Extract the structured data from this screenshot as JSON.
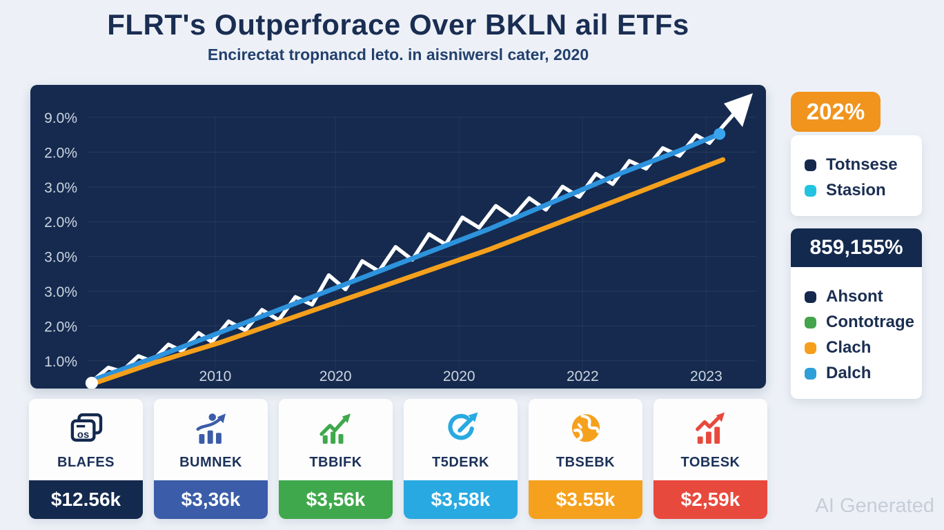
{
  "header": {
    "title": "FLRT's Outperforace Over BKLN ail ETFs",
    "subtitle": "Encirectat tropnancd leto. in aisniwersl cater, 2020"
  },
  "watermark": "AI Generated",
  "badges": {
    "top": {
      "value": "202%",
      "color": "#f0941e"
    },
    "big": {
      "value": "859,155%",
      "color": "#14294e"
    }
  },
  "legend1": {
    "items": [
      {
        "label": "Totnsese",
        "color": "#16294d"
      },
      {
        "label": "Stasion",
        "color": "#22c3e0"
      }
    ]
  },
  "legend2": {
    "items": [
      {
        "label": "Ahsont",
        "color": "#16294d"
      },
      {
        "label": "Contotrage",
        "color": "#43a44b"
      },
      {
        "label": "Clach",
        "color": "#f59f1d"
      },
      {
        "label": "Dalch",
        "color": "#2e9fd8"
      }
    ]
  },
  "chart_data": {
    "type": "line",
    "title": "",
    "background": "#152a4e",
    "grid": true,
    "y_tick_labels": [
      "9.0%",
      "2.0%",
      "3.0%",
      "2.0%",
      "3.0%",
      "3.0%",
      "2.0%",
      "1.0%"
    ],
    "x_ticks": [
      {
        "label": "2010",
        "pos": 0.19
      },
      {
        "label": "2020",
        "pos": 0.37
      },
      {
        "label": "2020",
        "pos": 0.555
      },
      {
        "label": "2022",
        "pos": 0.74
      },
      {
        "label": "2023",
        "pos": 0.925
      }
    ],
    "series": [
      {
        "name": "FLRT",
        "color": "#ffffff",
        "width": 5.5,
        "points": [
          [
            0.005,
            0.005
          ],
          [
            0.03,
            0.06
          ],
          [
            0.05,
            0.045
          ],
          [
            0.075,
            0.105
          ],
          [
            0.095,
            0.085
          ],
          [
            0.12,
            0.15
          ],
          [
            0.14,
            0.125
          ],
          [
            0.165,
            0.195
          ],
          [
            0.185,
            0.16
          ],
          [
            0.21,
            0.24
          ],
          [
            0.235,
            0.205
          ],
          [
            0.26,
            0.285
          ],
          [
            0.285,
            0.245
          ],
          [
            0.31,
            0.335
          ],
          [
            0.335,
            0.305
          ],
          [
            0.36,
            0.42
          ],
          [
            0.385,
            0.365
          ],
          [
            0.41,
            0.475
          ],
          [
            0.435,
            0.435
          ],
          [
            0.46,
            0.53
          ],
          [
            0.485,
            0.48
          ],
          [
            0.51,
            0.58
          ],
          [
            0.535,
            0.54
          ],
          [
            0.56,
            0.645
          ],
          [
            0.585,
            0.605
          ],
          [
            0.61,
            0.69
          ],
          [
            0.635,
            0.645
          ],
          [
            0.66,
            0.72
          ],
          [
            0.685,
            0.675
          ],
          [
            0.71,
            0.765
          ],
          [
            0.735,
            0.725
          ],
          [
            0.76,
            0.815
          ],
          [
            0.785,
            0.775
          ],
          [
            0.81,
            0.865
          ],
          [
            0.835,
            0.835
          ],
          [
            0.86,
            0.915
          ],
          [
            0.885,
            0.885
          ],
          [
            0.91,
            0.965
          ],
          [
            0.93,
            0.935
          ],
          [
            0.95,
            1.0
          ],
          [
            0.967,
            1.05
          ]
        ]
      },
      {
        "name": "Stasion",
        "color": "#2e93dd",
        "width": 7,
        "end_dot": true,
        "end_dot_color": "#3aa5ee",
        "points": [
          [
            0.005,
            0.01
          ],
          [
            0.1,
            0.1
          ],
          [
            0.2,
            0.2
          ],
          [
            0.3,
            0.3
          ],
          [
            0.4,
            0.4
          ],
          [
            0.5,
            0.5
          ],
          [
            0.6,
            0.6
          ],
          [
            0.7,
            0.71
          ],
          [
            0.8,
            0.82
          ],
          [
            0.88,
            0.9
          ],
          [
            0.945,
            0.97
          ]
        ]
      },
      {
        "name": "Clach",
        "color": "#f5a01c",
        "width": 7,
        "points": [
          [
            0.01,
            0.0
          ],
          [
            0.1,
            0.08
          ],
          [
            0.2,
            0.16
          ],
          [
            0.3,
            0.25
          ],
          [
            0.4,
            0.34
          ],
          [
            0.5,
            0.43
          ],
          [
            0.6,
            0.52
          ],
          [
            0.7,
            0.62
          ],
          [
            0.8,
            0.72
          ],
          [
            0.9,
            0.82
          ],
          [
            0.95,
            0.87
          ]
        ]
      }
    ],
    "start_marker": {
      "color": "#ffffff",
      "x": 0.005,
      "y": 0.0
    },
    "arrow": {
      "color": "#ffffff"
    }
  },
  "cards": [
    {
      "label": "BLAFES",
      "value": "$12.56k",
      "color": "#14294e",
      "icon": "documents-icon",
      "icon_color": "#14294e"
    },
    {
      "label": "BUMNEK",
      "value": "$3,36k",
      "color": "#3b5ca8",
      "icon": "growth-person-icon",
      "icon_color": "#3b5ca8"
    },
    {
      "label": "TBBIFK",
      "value": "$3,56k",
      "color": "#3fa84c",
      "icon": "bars-up-arrow-icon",
      "icon_color": "#3fa84c"
    },
    {
      "label": "T5DERK",
      "value": "$3,58k",
      "color": "#29a9e1",
      "icon": "circular-arrow-icon",
      "icon_color": "#29a9e1"
    },
    {
      "label": "TBSEBK",
      "value": "$3.55k",
      "color": "#f5a11d",
      "icon": "globe-icon",
      "icon_color": "#f5a11d"
    },
    {
      "label": "TOBESK",
      "value": "$2,59k",
      "color": "#e8493d",
      "icon": "bars-up-arrow-icon",
      "icon_color": "#e8493d"
    }
  ]
}
